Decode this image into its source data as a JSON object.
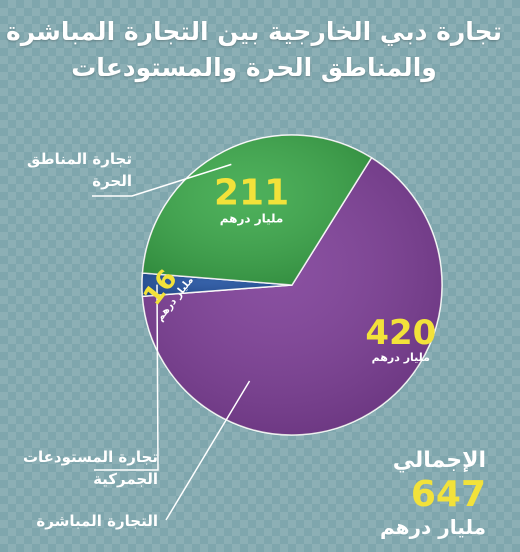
{
  "header": {
    "title_line1": "تجارة دبي الخارجية بين التجارة المباشرة",
    "title_line2": "والمناطق الحرة والمستودعات"
  },
  "chart_data": {
    "type": "pie",
    "unit": "مليار درهم",
    "slices": [
      {
        "label": "التجارة المباشرة",
        "value": 420,
        "color": "#7d3d97"
      },
      {
        "label": "تجارة المستودعات الجمركية",
        "value": 16,
        "color": "#1f4f9e"
      },
      {
        "label": "تجارة المناطق الحرة",
        "value": 211,
        "color": "#3aa849"
      }
    ],
    "callouts": {
      "free_zones_line1": "تجارة المناطق",
      "free_zones_line2": "الحرة",
      "warehouses_line1": "تجارة المستودعات",
      "warehouses_line2": "الجمركية",
      "direct": "التجارة المباشرة"
    },
    "total": {
      "label": "الإجمالي",
      "value": 647,
      "unit": "مليار درهم"
    },
    "colors": {
      "value_text": "#f2e23a",
      "unit_text": "#ffffff"
    }
  }
}
